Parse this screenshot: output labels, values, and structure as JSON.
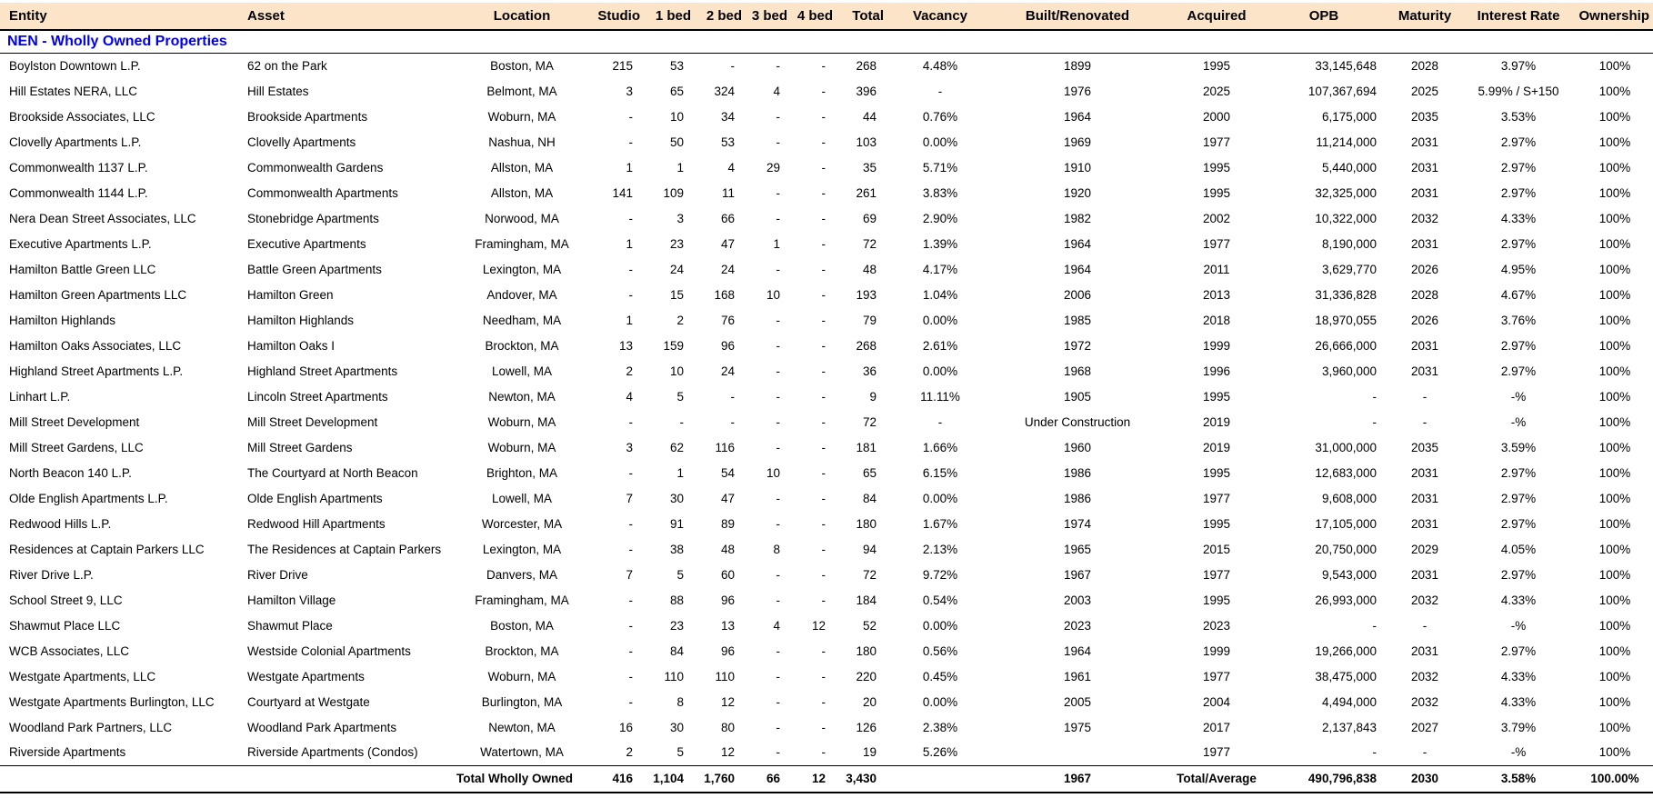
{
  "colors": {
    "header_bg": "#FCE4C8",
    "section_title_color": "#0000EE",
    "border_color": "#000000",
    "text_color": "#000000"
  },
  "table": {
    "columns": [
      {
        "label": "Entity"
      },
      {
        "label": "Asset"
      },
      {
        "label": "Location"
      },
      {
        "label": "Studio"
      },
      {
        "label": "1 bed"
      },
      {
        "label": "2 bed"
      },
      {
        "label": "3 bed"
      },
      {
        "label": "4 bed"
      },
      {
        "label": "Total"
      },
      {
        "label": "Vacancy"
      },
      {
        "label": "Built/Renovated"
      },
      {
        "label": "Acquired"
      },
      {
        "label": "OPB"
      },
      {
        "label": "Maturity"
      },
      {
        "label": "Interest Rate"
      },
      {
        "label": "Ownership"
      }
    ],
    "section_title": "NEN - Wholly Owned Properties",
    "rows": [
      [
        "Boylston Downtown L.P.",
        "62 on the Park",
        "Boston, MA",
        "215",
        "53",
        "-",
        "-",
        "-",
        "268",
        "4.48%",
        "1899",
        "1995",
        "33,145,648",
        "2028",
        "3.97%",
        "100%"
      ],
      [
        "Hill Estates NERA, LLC",
        "Hill Estates",
        "Belmont, MA",
        "3",
        "65",
        "324",
        "4",
        "-",
        "396",
        "-",
        "1976",
        "2025",
        "107,367,694",
        "2025",
        "5.99% / S+150",
        "100%"
      ],
      [
        "Brookside Associates, LLC",
        "Brookside Apartments",
        "Woburn, MA",
        "-",
        "10",
        "34",
        "-",
        "-",
        "44",
        "0.76%",
        "1964",
        "2000",
        "6,175,000",
        "2035",
        "3.53%",
        "100%"
      ],
      [
        "Clovelly Apartments L.P.",
        "Clovelly Apartments",
        "Nashua, NH",
        "-",
        "50",
        "53",
        "-",
        "-",
        "103",
        "0.00%",
        "1969",
        "1977",
        "11,214,000",
        "2031",
        "2.97%",
        "100%"
      ],
      [
        "Commonwealth 1137 L.P.",
        "Commonwealth Gardens",
        "Allston, MA",
        "1",
        "1",
        "4",
        "29",
        "-",
        "35",
        "5.71%",
        "1910",
        "1995",
        "5,440,000",
        "2031",
        "2.97%",
        "100%"
      ],
      [
        "Commonwealth 1144 L.P.",
        "Commonwealth Apartments",
        "Allston, MA",
        "141",
        "109",
        "11",
        "-",
        "-",
        "261",
        "3.83%",
        "1920",
        "1995",
        "32,325,000",
        "2031",
        "2.97%",
        "100%"
      ],
      [
        "Nera Dean Street Associates, LLC",
        "Stonebridge Apartments",
        "Norwood, MA",
        "-",
        "3",
        "66",
        "-",
        "-",
        "69",
        "2.90%",
        "1982",
        "2002",
        "10,322,000",
        "2032",
        "4.33%",
        "100%"
      ],
      [
        "Executive Apartments L.P.",
        "Executive Apartments",
        "Framingham, MA",
        "1",
        "23",
        "47",
        "1",
        "-",
        "72",
        "1.39%",
        "1964",
        "1977",
        "8,190,000",
        "2031",
        "2.97%",
        "100%"
      ],
      [
        "Hamilton Battle Green LLC",
        "Battle Green Apartments",
        "Lexington, MA",
        "-",
        "24",
        "24",
        "-",
        "-",
        "48",
        "4.17%",
        "1964",
        "2011",
        "3,629,770",
        "2026",
        "4.95%",
        "100%"
      ],
      [
        "Hamilton Green Apartments LLC",
        "Hamilton Green",
        "Andover, MA",
        "-",
        "15",
        "168",
        "10",
        "-",
        "193",
        "1.04%",
        "2006",
        "2013",
        "31,336,828",
        "2028",
        "4.67%",
        "100%"
      ],
      [
        "Hamilton Highlands",
        "Hamilton Highlands",
        "Needham, MA",
        "1",
        "2",
        "76",
        "-",
        "-",
        "79",
        "0.00%",
        "1985",
        "2018",
        "18,970,055",
        "2026",
        "3.76%",
        "100%"
      ],
      [
        "Hamilton Oaks Associates, LLC",
        "Hamilton Oaks I",
        "Brockton, MA",
        "13",
        "159",
        "96",
        "-",
        "-",
        "268",
        "2.61%",
        "1972",
        "1999",
        "26,666,000",
        "2031",
        "2.97%",
        "100%"
      ],
      [
        "Highland Street Apartments L.P.",
        "Highland Street Apartments",
        "Lowell, MA",
        "2",
        "10",
        "24",
        "-",
        "-",
        "36",
        "0.00%",
        "1968",
        "1996",
        "3,960,000",
        "2031",
        "2.97%",
        "100%"
      ],
      [
        "Linhart L.P.",
        "Lincoln Street Apartments",
        "Newton, MA",
        "4",
        "5",
        "-",
        "-",
        "-",
        "9",
        "11.11%",
        "1905",
        "1995",
        "-",
        "-",
        "-%",
        "100%"
      ],
      [
        "Mill Street Development",
        "Mill Street Development",
        "Woburn, MA",
        "-",
        "-",
        "-",
        "-",
        "-",
        "72",
        "-",
        "Under Construction",
        "2019",
        "-",
        "-",
        "-%",
        "100%"
      ],
      [
        "Mill Street Gardens, LLC",
        "Mill Street Gardens",
        "Woburn, MA",
        "3",
        "62",
        "116",
        "-",
        "-",
        "181",
        "1.66%",
        "1960",
        "2019",
        "31,000,000",
        "2035",
        "3.59%",
        "100%"
      ],
      [
        "North Beacon 140 L.P.",
        "The Courtyard at North Beacon",
        "Brighton, MA",
        "-",
        "1",
        "54",
        "10",
        "-",
        "65",
        "6.15%",
        "1986",
        "1995",
        "12,683,000",
        "2031",
        "2.97%",
        "100%"
      ],
      [
        "Olde English Apartments L.P.",
        "Olde English Apartments",
        "Lowell, MA",
        "7",
        "30",
        "47",
        "-",
        "-",
        "84",
        "0.00%",
        "1986",
        "1977",
        "9,608,000",
        "2031",
        "2.97%",
        "100%"
      ],
      [
        "Redwood Hills L.P.",
        "Redwood Hill Apartments",
        "Worcester, MA",
        "-",
        "91",
        "89",
        "-",
        "-",
        "180",
        "1.67%",
        "1974",
        "1995",
        "17,105,000",
        "2031",
        "2.97%",
        "100%"
      ],
      [
        "Residences at Captain Parkers LLC",
        "The Residences at Captain Parkers",
        "Lexington, MA",
        "-",
        "38",
        "48",
        "8",
        "-",
        "94",
        "2.13%",
        "1965",
        "2015",
        "20,750,000",
        "2029",
        "4.05%",
        "100%"
      ],
      [
        "River Drive L.P.",
        "River Drive",
        "Danvers, MA",
        "7",
        "5",
        "60",
        "-",
        "-",
        "72",
        "9.72%",
        "1967",
        "1977",
        "9,543,000",
        "2031",
        "2.97%",
        "100%"
      ],
      [
        "School Street 9, LLC",
        "Hamilton Village",
        "Framingham, MA",
        "-",
        "88",
        "96",
        "-",
        "-",
        "184",
        "0.54%",
        "2003",
        "1995",
        "26,993,000",
        "2032",
        "4.33%",
        "100%"
      ],
      [
        "Shawmut Place LLC",
        "Shawmut Place",
        "Boston, MA",
        "-",
        "23",
        "13",
        "4",
        "12",
        "52",
        "0.00%",
        "2023",
        "2023",
        "-",
        "-",
        "-%",
        "100%"
      ],
      [
        "WCB Associates, LLC",
        "Westside Colonial Apartments",
        "Brockton, MA",
        "-",
        "84",
        "96",
        "-",
        "-",
        "180",
        "0.56%",
        "1964",
        "1999",
        "19,266,000",
        "2031",
        "2.97%",
        "100%"
      ],
      [
        "Westgate Apartments, LLC",
        "Westgate Apartments",
        "Woburn, MA",
        "-",
        "110",
        "110",
        "-",
        "-",
        "220",
        "0.45%",
        "1961",
        "1977",
        "38,475,000",
        "2032",
        "4.33%",
        "100%"
      ],
      [
        "Westgate Apartments Burlington, LLC",
        "Courtyard at Westgate",
        "Burlington, MA",
        "-",
        "8",
        "12",
        "-",
        "-",
        "20",
        "0.00%",
        "2005",
        "2004",
        "4,494,000",
        "2032",
        "4.33%",
        "100%"
      ],
      [
        "Woodland Park Partners, LLC",
        "Woodland Park Apartments",
        "Newton, MA",
        "16",
        "30",
        "80",
        "-",
        "-",
        "126",
        "2.38%",
        "1975",
        "2017",
        "2,137,843",
        "2027",
        "3.79%",
        "100%"
      ],
      [
        "Riverside Apartments",
        "Riverside Apartments (Condos)",
        "Watertown, MA",
        "2",
        "5",
        "12",
        "-",
        "-",
        "19",
        "5.26%",
        "",
        "1977",
        "-",
        "-",
        "-%",
        "100%"
      ]
    ],
    "total_row": {
      "label": "Total Wholly Owned",
      "cells": [
        "416",
        "1,104",
        "1,760",
        "66",
        "12",
        "3,430",
        "",
        "1967",
        "Total/Average",
        "490,796,838",
        "2030",
        "3.58%",
        "100.00%"
      ]
    }
  }
}
